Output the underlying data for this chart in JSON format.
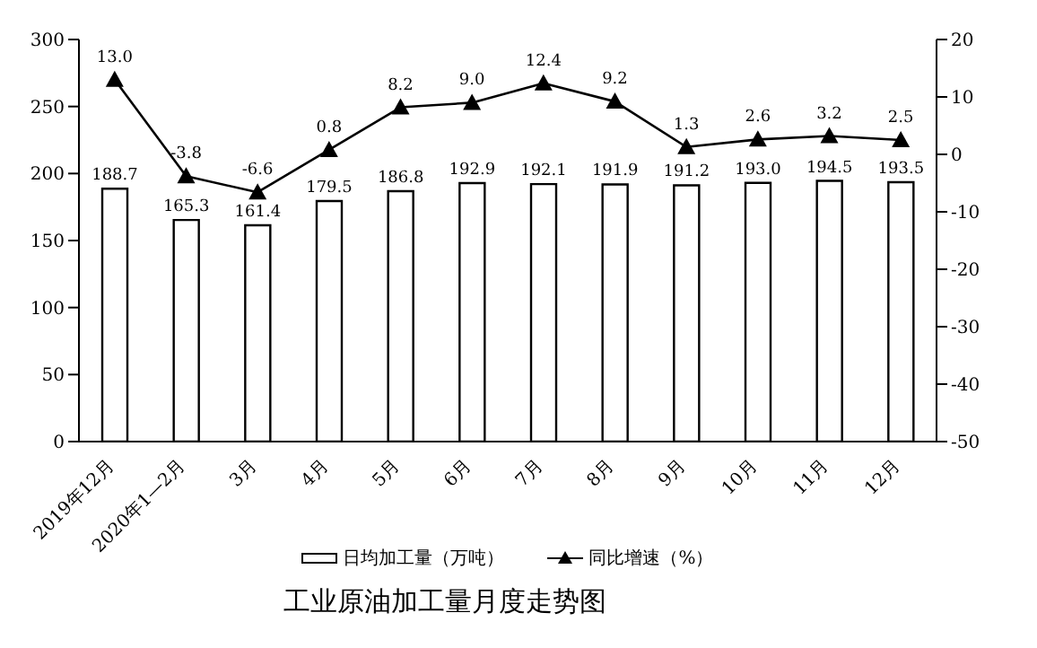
{
  "chart_data": {
    "type": "bar",
    "title": "工业原油加工量月度走势图",
    "categories": [
      "2019年12月",
      "2020年1—2月",
      "3月",
      "4月",
      "5月",
      "6月",
      "7月",
      "8月",
      "9月",
      "10月",
      "11月",
      "12月"
    ],
    "series": [
      {
        "name": "日均加工量（万吨）",
        "color": "#ffffff",
        "values": [
          188.7,
          165.3,
          161.4,
          179.5,
          186.8,
          192.9,
          192.1,
          191.9,
          191.2,
          193.0,
          194.5,
          193.5
        ],
        "value_labels": [
          "188.7",
          "165.3",
          "161.4",
          "179.5",
          "186.8",
          "192.9",
          "192.1",
          "191.9",
          "191.2",
          "193.0",
          "194.5",
          "193.5"
        ]
      },
      {
        "name": "同比增速（%）",
        "type": "line",
        "axis": "y2",
        "color": "#000000",
        "marker": "triangle",
        "values": [
          13.0,
          -3.8,
          -6.6,
          0.8,
          8.2,
          9.0,
          12.4,
          9.2,
          1.3,
          2.6,
          3.2,
          2.5
        ],
        "value_labels": [
          "13.0",
          "-3.8",
          "-6.6",
          "0.8",
          "8.2",
          "9.0",
          "12.4",
          "9.2",
          "1.3",
          "2.6",
          "3.2",
          "2.5"
        ]
      }
    ],
    "ylim": [
      0,
      300
    ],
    "yticks": [
      0,
      50,
      100,
      150,
      200,
      250,
      300
    ],
    "y2lim": [
      -50,
      20
    ],
    "y2ticks": [
      -50,
      -40,
      -30,
      -20,
      -10,
      0,
      10,
      20
    ],
    "legend": "bottom"
  }
}
